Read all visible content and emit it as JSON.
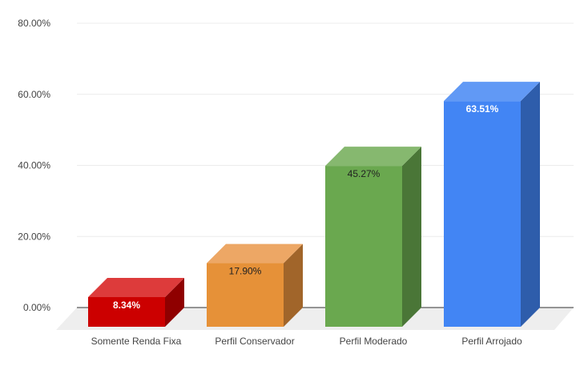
{
  "chart_data": {
    "type": "bar",
    "categories": [
      "Somente Renda Fixa",
      "Perfil Conservador",
      "Perfil Moderado",
      "Perfil Arrojado"
    ],
    "series": [
      {
        "values": [
          8.34,
          17.9,
          45.27,
          63.51
        ]
      }
    ],
    "data_labels": [
      "8.34%",
      "17.90%",
      "45.27%",
      "63.51%"
    ],
    "yticks": [
      "0.00%",
      "20.00%",
      "40.00%",
      "60.00%",
      "80.00%"
    ],
    "ylim": [
      0,
      80
    ],
    "grid": true,
    "legend": "none",
    "title": "",
    "xlabel": "",
    "ylabel": "",
    "style": "3d",
    "colors": {
      "front": [
        "#cc0000",
        "#e69138",
        "#6aa84f",
        "#4285f4"
      ],
      "top": [
        "#dd3b3b",
        "#eda765",
        "#86b86f",
        "#6199f5"
      ],
      "side": [
        "#8f0000",
        "#a1652a",
        "#4a7637",
        "#2e5dab"
      ],
      "label": [
        "#ffffff",
        "#222222",
        "#222222",
        "#ffffff"
      ],
      "floor": "#eeeeee",
      "grid": "#ececec",
      "axis": "#333333"
    }
  }
}
